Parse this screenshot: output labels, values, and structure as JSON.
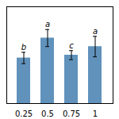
{
  "chart_data": {
    "type": "bar",
    "categories": [
      "0.25",
      "0.5",
      "0.75",
      "1"
    ],
    "values": [
      11.2,
      11.55,
      11.25,
      11.4
    ],
    "errors": [
      0.1,
      0.15,
      0.08,
      0.18
    ],
    "letters": [
      "b",
      "a",
      "c",
      "a"
    ],
    "color": "#6192bc",
    "ylim": [
      10.4,
      12.1
    ],
    "tick_labels": "x"
  }
}
